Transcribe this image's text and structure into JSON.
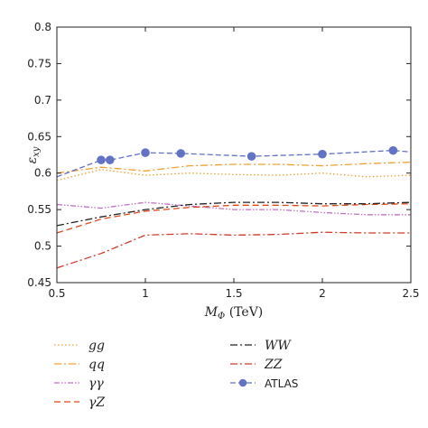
{
  "chart_data": {
    "type": "line",
    "xlabel": "M_Φ (TeV)",
    "ylabel": "ε_xy",
    "xlim": [
      0.5,
      2.5
    ],
    "ylim": [
      0.45,
      0.8
    ],
    "xticks": [
      "0.5",
      "1",
      "1.5",
      "2",
      "2.5"
    ],
    "yticks": [
      "0.45",
      "0.5",
      "0.55",
      "0.6",
      "0.65",
      "0.7",
      "0.75",
      "0.8"
    ],
    "grid": false,
    "legend_position": "below",
    "series": [
      {
        "name": "gg",
        "color": "#f0a030",
        "dash": "1.5,2.5",
        "x": [
          0.5,
          0.75,
          1.0,
          1.25,
          1.5,
          1.75,
          2.0,
          2.25,
          2.5
        ],
        "y": [
          0.59,
          0.605,
          0.597,
          0.6,
          0.598,
          0.597,
          0.6,
          0.595,
          0.597
        ]
      },
      {
        "name": "qq",
        "color": "#f0a030",
        "dash": "8,3,2,3",
        "x": [
          0.5,
          0.75,
          1.0,
          1.25,
          1.5,
          1.75,
          2.0,
          2.25,
          2.5
        ],
        "y": [
          0.6,
          0.608,
          0.603,
          0.61,
          0.612,
          0.612,
          0.61,
          0.613,
          0.615
        ]
      },
      {
        "name": "γγ",
        "color": "#c070c0",
        "dash": "6,2,1.5,2,1.5,2",
        "x": [
          0.5,
          0.75,
          1.0,
          1.25,
          1.5,
          1.75,
          2.0,
          2.25,
          2.5
        ],
        "y": [
          0.557,
          0.552,
          0.56,
          0.555,
          0.55,
          0.55,
          0.546,
          0.543,
          0.543
        ]
      },
      {
        "name": "γZ",
        "color": "#e04818",
        "dash": "7,4",
        "x": [
          0.5,
          0.75,
          1.0,
          1.25,
          1.5,
          1.75,
          2.0,
          2.25,
          2.5
        ],
        "y": [
          0.518,
          0.537,
          0.548,
          0.553,
          0.556,
          0.556,
          0.555,
          0.557,
          0.558
        ]
      },
      {
        "name": "WW",
        "color": "#222222",
        "dash": "8,3,2,3",
        "x": [
          0.5,
          0.75,
          1.0,
          1.25,
          1.5,
          1.75,
          2.0,
          2.25,
          2.5
        ],
        "y": [
          0.528,
          0.54,
          0.55,
          0.557,
          0.56,
          0.56,
          0.558,
          0.558,
          0.56
        ]
      },
      {
        "name": "ZZ",
        "color": "#d03828",
        "dash": "8,3,2,3",
        "x": [
          0.5,
          0.75,
          1.0,
          1.25,
          1.5,
          1.75,
          2.0,
          2.25,
          2.5
        ],
        "y": [
          0.47,
          0.49,
          0.515,
          0.517,
          0.515,
          0.516,
          0.519,
          0.518,
          0.518
        ]
      },
      {
        "name": "ATLAS",
        "color": "#6272c4",
        "dash": "6,3",
        "marker": "circle",
        "x": [
          0.5,
          0.75,
          0.8,
          1.0,
          1.2,
          1.6,
          2.0,
          2.4,
          2.5
        ],
        "y": [
          0.595,
          0.618,
          0.618,
          0.628,
          0.627,
          0.623,
          0.626,
          0.631,
          0.629
        ],
        "marker_x": [
          0.75,
          0.8,
          1.0,
          1.2,
          1.6,
          2.0,
          2.4
        ],
        "marker_y": [
          0.618,
          0.618,
          0.628,
          0.627,
          0.623,
          0.626,
          0.631
        ]
      }
    ]
  }
}
